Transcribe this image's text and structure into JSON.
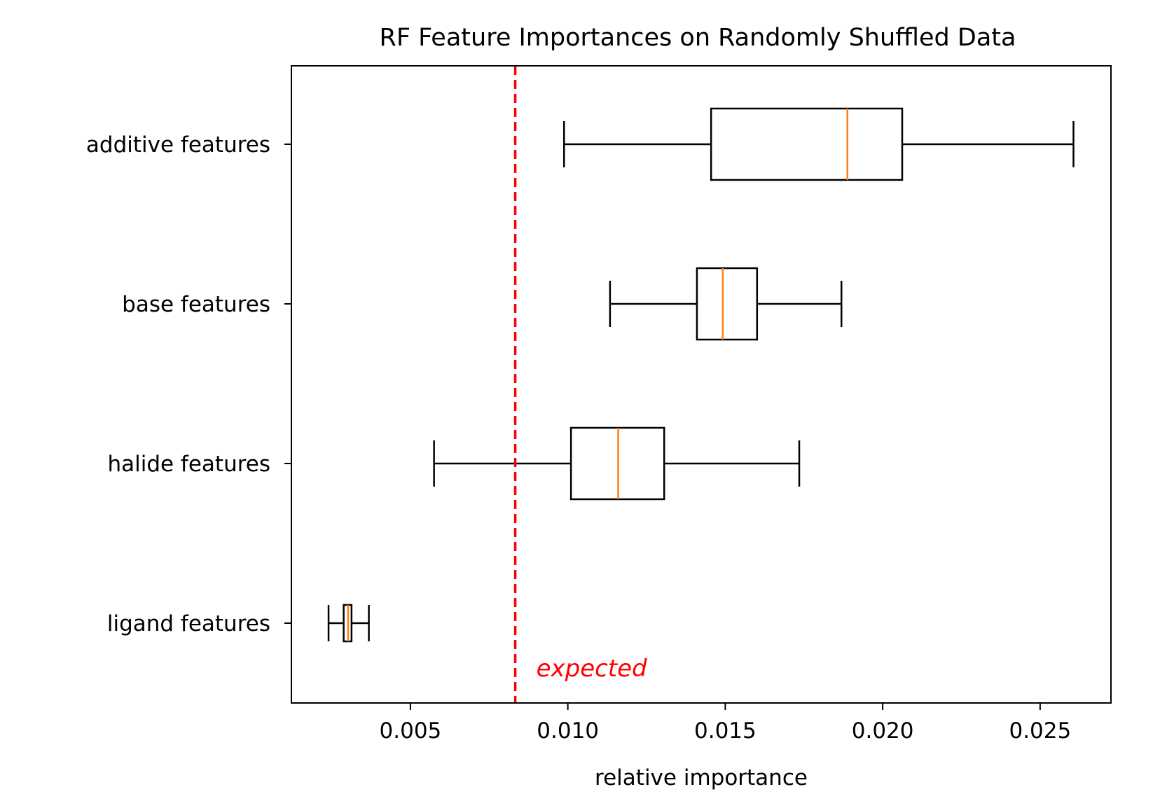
{
  "chart_data": {
    "type": "boxplot",
    "orientation": "horizontal",
    "title": "RF Feature Importances on Randomly Shuffled Data",
    "xlabel": "relative importance",
    "ylabel": "",
    "xlim": [
      0.00122,
      0.02725
    ],
    "xticks": [
      0.005,
      0.01,
      0.015,
      0.02,
      0.025
    ],
    "xtick_labels": [
      "0.005",
      "0.010",
      "0.015",
      "0.020",
      "0.025"
    ],
    "grid": false,
    "categories": [
      "additive features",
      "base features",
      "halide features",
      "ligand features"
    ],
    "boxes": [
      {
        "category": "additive features",
        "whisker_low": 0.00988,
        "q1": 0.01455,
        "median": 0.01888,
        "q3": 0.02062,
        "whisker_high": 0.02606
      },
      {
        "category": "base features",
        "whisker_low": 0.01134,
        "q1": 0.0141,
        "median": 0.01492,
        "q3": 0.01601,
        "whisker_high": 0.01869
      },
      {
        "category": "halide features",
        "whisker_low": 0.00575,
        "q1": 0.0101,
        "median": 0.0116,
        "q3": 0.01306,
        "whisker_high": 0.01735
      },
      {
        "category": "ligand features",
        "whisker_low": 0.0024,
        "q1": 0.00288,
        "median": 0.00302,
        "q3": 0.00313,
        "whisker_high": 0.00368
      }
    ],
    "reference_line": {
      "value": 0.00833,
      "label": "expected",
      "color": "#ff0000",
      "style": "dashed"
    },
    "colors": {
      "box": "#000000",
      "median": "#ff7f0e",
      "reference": "#ff0000"
    }
  }
}
